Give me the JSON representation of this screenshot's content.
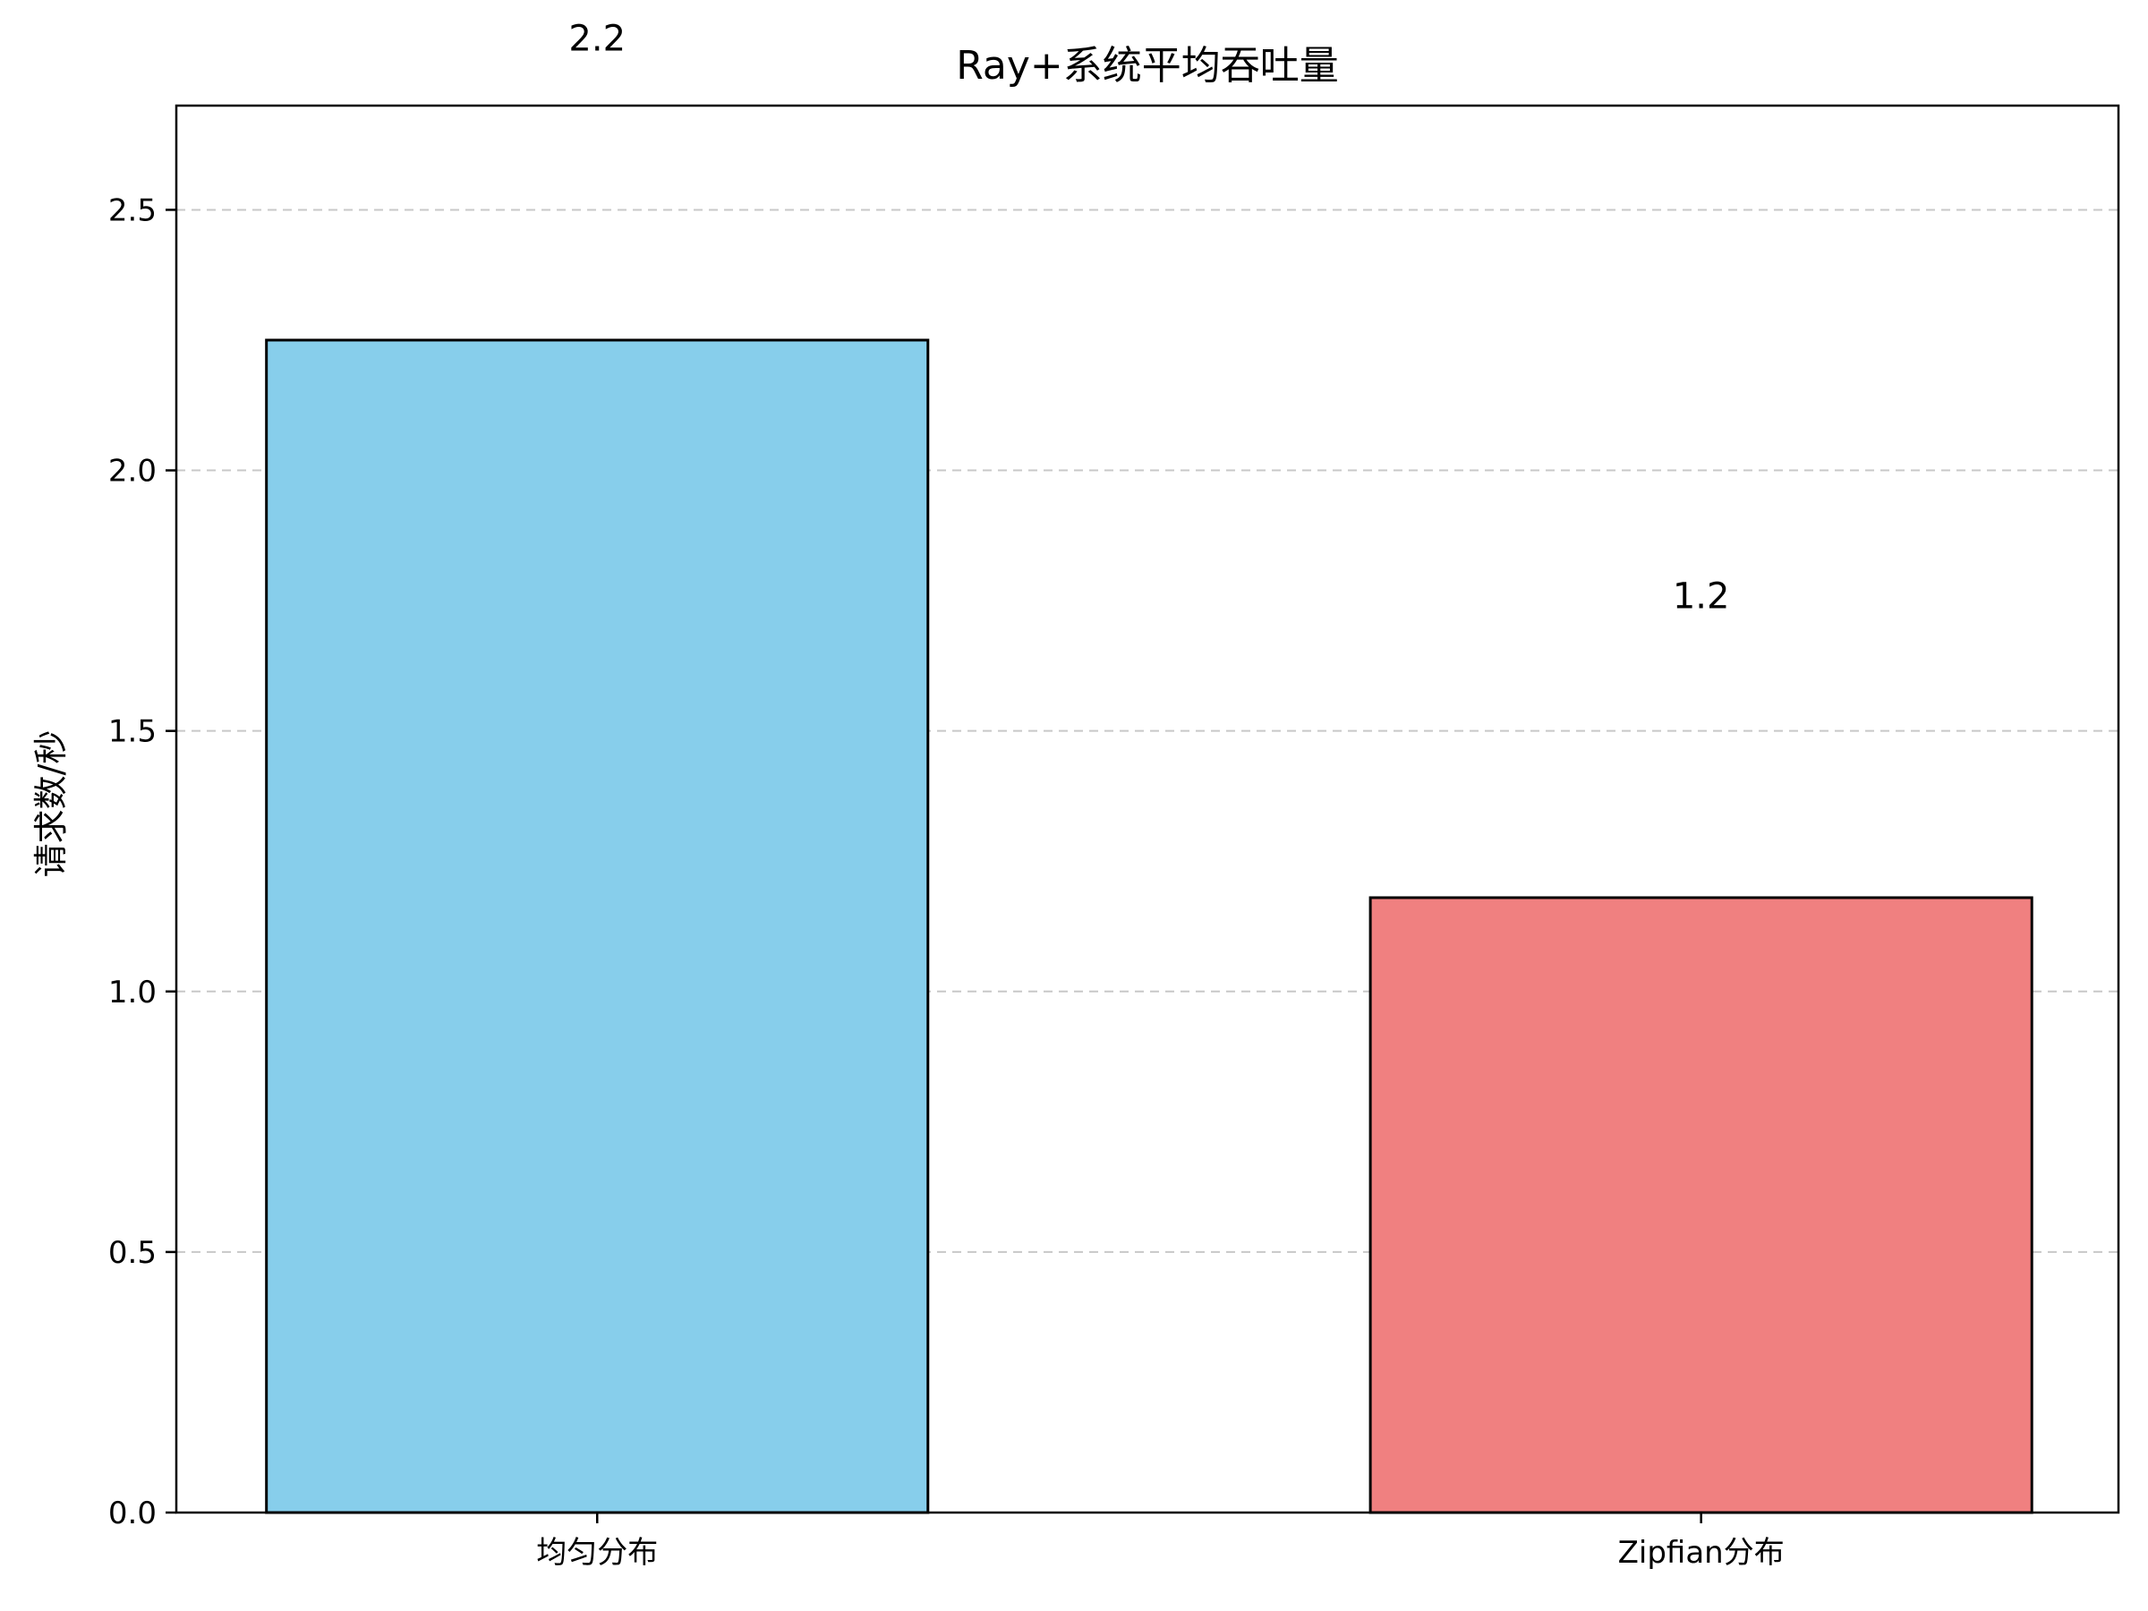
{
  "chart_data": {
    "type": "bar",
    "title": "Ray+系统平均吞吐量",
    "xlabel": "",
    "ylabel": "请求数/秒",
    "categories": [
      "均匀分布",
      "Zipfian分布"
    ],
    "values": [
      2.25,
      1.18
    ],
    "value_labels": [
      "2.2",
      "1.2"
    ],
    "colors": [
      "#87CEEB",
      "#F08080"
    ],
    "ylim": [
      0,
      2.7
    ],
    "yticks": [
      0.0,
      0.5,
      1.0,
      1.5,
      2.0,
      2.5
    ],
    "ytick_labels": [
      "0.0",
      "0.5",
      "1.0",
      "1.5",
      "2.0",
      "2.5"
    ],
    "grid": "y-dashed",
    "legend": "none"
  }
}
